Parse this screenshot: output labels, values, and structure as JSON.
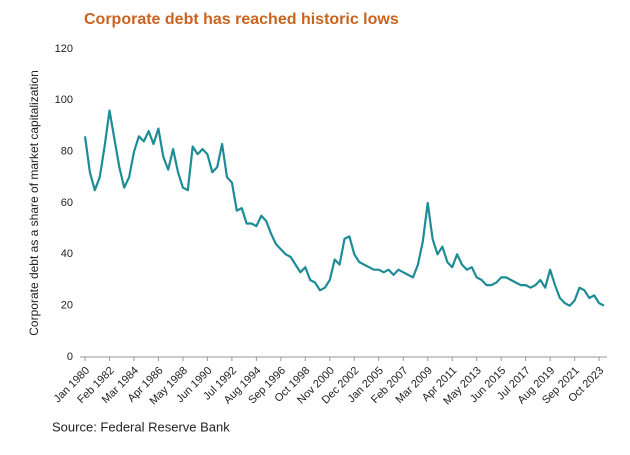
{
  "chart_data": {
    "type": "line",
    "title": "Corporate debt has reached historic lows",
    "y_label": "Corporate debt as a share of market capitalization",
    "source": "Source: Federal Reserve Bank",
    "color": "#1e8c96",
    "title_color": "#c8641e",
    "grid": false,
    "ylim": [
      0,
      120
    ],
    "yticks": [
      0,
      20,
      40,
      60,
      80,
      100,
      120
    ],
    "categories": [
      "Jan 1980",
      null,
      null,
      null,
      null,
      "Feb 1982",
      null,
      null,
      null,
      null,
      "Mar 1984",
      null,
      null,
      null,
      null,
      "Apr 1986",
      null,
      null,
      null,
      null,
      "May 1988",
      null,
      null,
      null,
      null,
      "Jun 1990",
      null,
      null,
      null,
      null,
      "Jul 1992",
      null,
      null,
      null,
      null,
      "Aug 1994",
      null,
      null,
      null,
      null,
      "Sep 1996",
      null,
      null,
      null,
      null,
      "Oct 1998",
      null,
      null,
      null,
      null,
      "Nov 2000",
      null,
      null,
      null,
      null,
      "Dec 2002",
      null,
      null,
      null,
      null,
      "Jan 2005",
      null,
      null,
      null,
      null,
      "Feb 2007",
      null,
      null,
      null,
      null,
      "Mar 2009",
      null,
      null,
      null,
      null,
      "Apr 2011",
      null,
      null,
      null,
      null,
      "May 2013",
      null,
      null,
      null,
      null,
      "Jun 2015",
      null,
      null,
      null,
      null,
      "Jul 2017",
      null,
      null,
      null,
      null,
      "Aug 2019",
      null,
      null,
      null,
      null,
      "Sep 2021",
      null,
      null,
      null,
      null,
      "Oct 2023",
      null
    ],
    "values": [
      86,
      72,
      65,
      70,
      82,
      96,
      85,
      74,
      66,
      70,
      80,
      86,
      84,
      88,
      83,
      89,
      78,
      73,
      81,
      72,
      66,
      65,
      82,
      79,
      81,
      79,
      72,
      74,
      83,
      70,
      68,
      57,
      58,
      52,
      52,
      51,
      55,
      53,
      48,
      44,
      42,
      40,
      39,
      36,
      33,
      35,
      30,
      29,
      26,
      27,
      30,
      38,
      36,
      46,
      47,
      40,
      37,
      36,
      35,
      34,
      34,
      33,
      34,
      32,
      34,
      33,
      32,
      31,
      36,
      45,
      60,
      46,
      40,
      43,
      37,
      35,
      40,
      36,
      34,
      35,
      31,
      30,
      28,
      28,
      29,
      31,
      31,
      30,
      29,
      28,
      28,
      27,
      28,
      30,
      27,
      34,
      28,
      23,
      21,
      20,
      22,
      27,
      26,
      23,
      24,
      21,
      20
    ]
  }
}
